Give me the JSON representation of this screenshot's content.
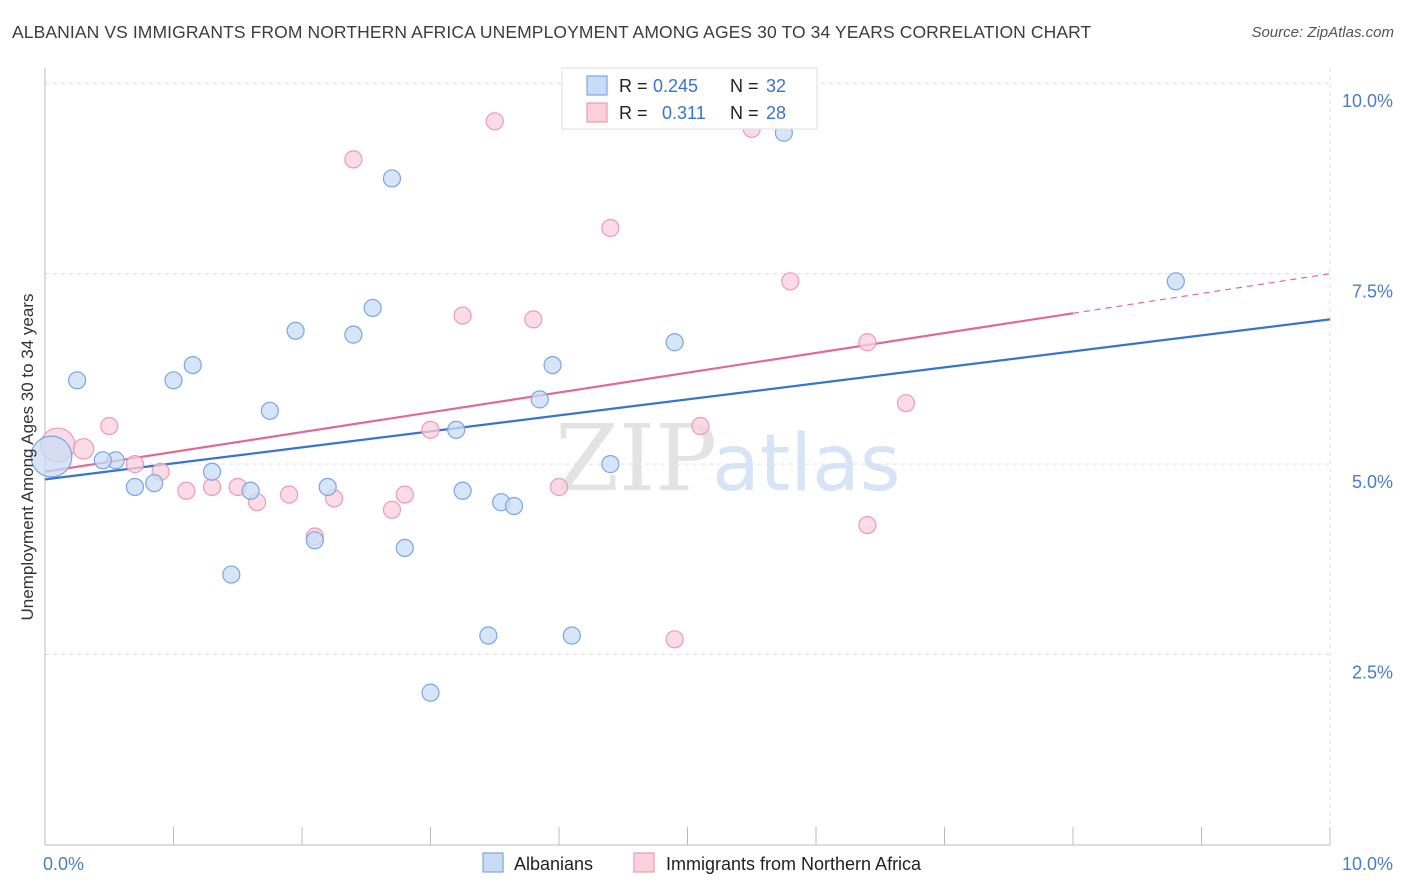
{
  "title": "ALBANIAN VS IMMIGRANTS FROM NORTHERN AFRICA UNEMPLOYMENT AMONG AGES 30 TO 34 YEARS CORRELATION CHART",
  "source": "Source: ZipAtlas.com",
  "watermark": {
    "zip": "ZIP",
    "atlas": "atlas"
  },
  "legend_box": {
    "rows": [
      {
        "r_label": "R =",
        "r_value": "0.245",
        "n_label": "N =",
        "n_value": "32",
        "color": "#a9c8f0"
      },
      {
        "r_label": "R =",
        "r_value": "0.311",
        "n_label": "N =",
        "n_value": "28",
        "color": "#f6b8cb"
      }
    ]
  },
  "bottom_legend": [
    "Albanians",
    "Immigrants from Northern Africa"
  ],
  "colors": {
    "blue_fill": "#c9dcf5",
    "blue_stroke": "#7aa6e0",
    "blue_line": "#3a73cf",
    "pink_fill": "#fad0dd",
    "pink_stroke": "#ee9ab4",
    "pink_line": "#e06a95",
    "tick": "#4a7cc9",
    "grid": "#dedede"
  },
  "chart_data": {
    "type": "scatter",
    "title": "ALBANIAN VS IMMIGRANTS FROM NORTHERN AFRICA UNEMPLOYMENT AMONG AGES 30 TO 34 YEARS CORRELATION CHART",
    "xlabel": "",
    "ylabel": "Unemployment Among Ages 30 to 34 years",
    "xlim": [
      0,
      10
    ],
    "ylim": [
      0,
      10.2
    ],
    "x_tick_labels": [
      "0.0%",
      "10.0%"
    ],
    "y_ticks": [
      2.5,
      5.0,
      7.5,
      10.0
    ],
    "y_tick_labels": [
      "2.5%",
      "5.0%",
      "7.5%",
      "10.0%"
    ],
    "grid": true,
    "legend_position": "top-center",
    "series": [
      {
        "name": "Albanians",
        "r": 0.245,
        "n": 32,
        "trend": {
          "x0": 0,
          "y0": 4.8,
          "x1": 10,
          "y1": 6.9
        },
        "points": [
          [
            0.05,
            5.1,
            24
          ],
          [
            0.25,
            6.1,
            10
          ],
          [
            0.55,
            5.05,
            10
          ],
          [
            0.7,
            4.7,
            10
          ],
          [
            0.85,
            4.75,
            10
          ],
          [
            1.0,
            6.1,
            10
          ],
          [
            1.15,
            6.3,
            10
          ],
          [
            1.3,
            4.9,
            10
          ],
          [
            1.45,
            3.55,
            10
          ],
          [
            1.6,
            4.65,
            10
          ],
          [
            1.75,
            5.7,
            10
          ],
          [
            1.95,
            6.75,
            10
          ],
          [
            2.1,
            4.0,
            10
          ],
          [
            2.2,
            4.7,
            10
          ],
          [
            2.4,
            6.7,
            10
          ],
          [
            2.55,
            7.05,
            10
          ],
          [
            2.7,
            8.75,
            10
          ],
          [
            2.8,
            3.9,
            10
          ],
          [
            3.0,
            2.0,
            10
          ],
          [
            3.2,
            5.45,
            10
          ],
          [
            3.25,
            4.65,
            10
          ],
          [
            3.45,
            2.75,
            10
          ],
          [
            3.55,
            4.5,
            10
          ],
          [
            3.65,
            4.45,
            10
          ],
          [
            3.85,
            5.85,
            10
          ],
          [
            3.95,
            6.3,
            10
          ],
          [
            4.1,
            2.75,
            10
          ],
          [
            4.4,
            5.0,
            10
          ],
          [
            4.9,
            6.6,
            10
          ],
          [
            5.75,
            9.35,
            10
          ],
          [
            8.8,
            7.4,
            10
          ],
          [
            0.45,
            5.05,
            10
          ]
        ]
      },
      {
        "name": "Immigrants from Northern Africa",
        "r": 0.311,
        "n": 28,
        "trend": {
          "x0": 0,
          "y0": 4.9,
          "x1": 10,
          "y1": 7.5,
          "solid_until": 8.0
        },
        "points": [
          [
            0.1,
            5.25,
            20
          ],
          [
            0.3,
            5.2,
            12
          ],
          [
            0.5,
            5.5,
            10
          ],
          [
            0.7,
            5.0,
            10
          ],
          [
            0.9,
            4.9,
            10
          ],
          [
            1.1,
            4.65,
            10
          ],
          [
            1.3,
            4.7,
            10
          ],
          [
            1.5,
            4.7,
            10
          ],
          [
            1.65,
            4.5,
            10
          ],
          [
            1.9,
            4.6,
            10
          ],
          [
            2.1,
            4.05,
            10
          ],
          [
            2.25,
            4.55,
            10
          ],
          [
            2.4,
            9.0,
            10
          ],
          [
            2.7,
            4.4,
            10
          ],
          [
            2.8,
            4.6,
            10
          ],
          [
            3.0,
            5.45,
            10
          ],
          [
            3.25,
            6.95,
            10
          ],
          [
            3.5,
            9.5,
            10
          ],
          [
            3.8,
            6.9,
            10
          ],
          [
            4.0,
            4.7,
            10
          ],
          [
            4.4,
            8.1,
            10
          ],
          [
            4.9,
            2.7,
            10
          ],
          [
            5.1,
            5.5,
            10
          ],
          [
            5.5,
            9.4,
            10
          ],
          [
            5.8,
            7.4,
            10
          ],
          [
            6.4,
            6.6,
            10
          ],
          [
            6.4,
            4.2,
            10
          ],
          [
            6.7,
            5.8,
            10
          ]
        ]
      }
    ]
  }
}
